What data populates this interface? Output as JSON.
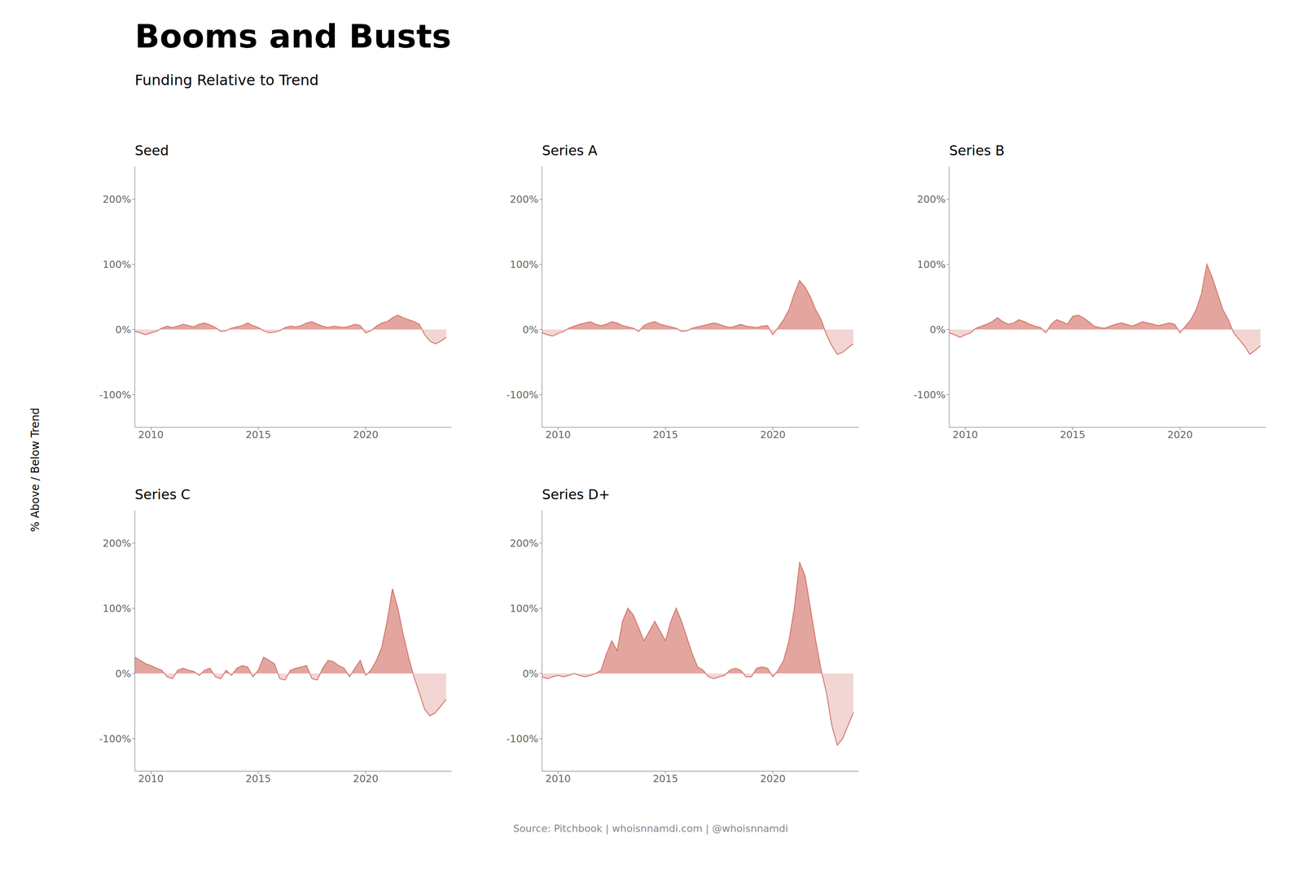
{
  "title": "Booms and Busts",
  "subtitle": "Funding Relative to Trend",
  "ylabel": "% Above / Below Trend",
  "annotations": [
    "Source: Pitchbook | whoisnnamdi.com | @whoisnnamdi"
  ],
  "chart_data": [
    {
      "type": "area",
      "title": "Seed",
      "color": "#d4756b",
      "grid": false,
      "xlim": [
        2009.25,
        2024.0
      ],
      "xticks": [
        2010,
        2015,
        2020
      ],
      "ylim": [
        -150,
        250
      ],
      "yticks": [
        {
          "value": -100,
          "label": "-100%"
        },
        {
          "value": 0,
          "label": "0%"
        },
        {
          "value": 100,
          "label": "100%"
        },
        {
          "value": 200,
          "label": "200%"
        }
      ],
      "x": [
        2009.25,
        2009.5,
        2009.75,
        2010.0,
        2010.25,
        2010.5,
        2010.75,
        2011.0,
        2011.25,
        2011.5,
        2011.75,
        2012.0,
        2012.25,
        2012.5,
        2012.75,
        2013.0,
        2013.25,
        2013.5,
        2013.75,
        2014.0,
        2014.25,
        2014.5,
        2014.75,
        2015.0,
        2015.25,
        2015.5,
        2015.75,
        2016.0,
        2016.25,
        2016.5,
        2016.75,
        2017.0,
        2017.25,
        2017.5,
        2017.75,
        2018.0,
        2018.25,
        2018.5,
        2018.75,
        2019.0,
        2019.25,
        2019.5,
        2019.75,
        2020.0,
        2020.25,
        2020.5,
        2020.75,
        2021.0,
        2021.25,
        2021.5,
        2021.75,
        2022.0,
        2022.25,
        2022.5,
        2022.75,
        2023.0,
        2023.25,
        2023.5,
        2023.75
      ],
      "values": [
        -3,
        -5,
        -8,
        -5,
        -3,
        2,
        5,
        3,
        5,
        8,
        6,
        4,
        8,
        10,
        7,
        3,
        -3,
        -2,
        2,
        4,
        6,
        10,
        6,
        3,
        -2,
        -5,
        -4,
        -2,
        3,
        5,
        4,
        6,
        10,
        12,
        8,
        5,
        3,
        5,
        4,
        3,
        5,
        8,
        6,
        -5,
        -2,
        5,
        10,
        12,
        18,
        22,
        18,
        15,
        12,
        8,
        -8,
        -18,
        -22,
        -18,
        -12
      ]
    },
    {
      "type": "area",
      "title": "Series A",
      "color": "#d4756b",
      "grid": false,
      "xlim": [
        2009.25,
        2024.0
      ],
      "xticks": [
        2010,
        2015,
        2020
      ],
      "ylim": [
        -150,
        250
      ],
      "yticks": [
        {
          "value": -100,
          "label": "-100%"
        },
        {
          "value": 0,
          "label": "0%"
        },
        {
          "value": 100,
          "label": "100%"
        },
        {
          "value": 200,
          "label": "200%"
        }
      ],
      "x": [
        2009.25,
        2009.5,
        2009.75,
        2010.0,
        2010.25,
        2010.5,
        2010.75,
        2011.0,
        2011.25,
        2011.5,
        2011.75,
        2012.0,
        2012.25,
        2012.5,
        2012.75,
        2013.0,
        2013.25,
        2013.5,
        2013.75,
        2014.0,
        2014.25,
        2014.5,
        2014.75,
        2015.0,
        2015.25,
        2015.5,
        2015.75,
        2016.0,
        2016.25,
        2016.5,
        2016.75,
        2017.0,
        2017.25,
        2017.5,
        2017.75,
        2018.0,
        2018.25,
        2018.5,
        2018.75,
        2019.0,
        2019.25,
        2019.5,
        2019.75,
        2020.0,
        2020.25,
        2020.5,
        2020.75,
        2021.0,
        2021.25,
        2021.5,
        2021.75,
        2022.0,
        2022.25,
        2022.5,
        2022.75,
        2023.0,
        2023.25,
        2023.5,
        2023.75
      ],
      "values": [
        -5,
        -8,
        -10,
        -6,
        -3,
        2,
        5,
        8,
        10,
        12,
        8,
        6,
        8,
        12,
        10,
        6,
        4,
        2,
        -3,
        6,
        10,
        12,
        8,
        6,
        4,
        2,
        -3,
        -2,
        2,
        4,
        6,
        8,
        10,
        8,
        5,
        3,
        5,
        8,
        5,
        4,
        3,
        5,
        6,
        -8,
        3,
        15,
        30,
        55,
        75,
        65,
        50,
        30,
        15,
        -8,
        -25,
        -38,
        -35,
        -28,
        -22
      ]
    },
    {
      "type": "area",
      "title": "Series B",
      "color": "#d4756b",
      "grid": false,
      "xlim": [
        2009.25,
        2024.0
      ],
      "xticks": [
        2010,
        2015,
        2020
      ],
      "ylim": [
        -150,
        250
      ],
      "yticks": [
        {
          "value": -100,
          "label": "-100%"
        },
        {
          "value": 0,
          "label": "0%"
        },
        {
          "value": 100,
          "label": "100%"
        },
        {
          "value": 200,
          "label": "200%"
        }
      ],
      "x": [
        2009.25,
        2009.5,
        2009.75,
        2010.0,
        2010.25,
        2010.5,
        2010.75,
        2011.0,
        2011.25,
        2011.5,
        2011.75,
        2012.0,
        2012.25,
        2012.5,
        2012.75,
        2013.0,
        2013.25,
        2013.5,
        2013.75,
        2014.0,
        2014.25,
        2014.5,
        2014.75,
        2015.0,
        2015.25,
        2015.5,
        2015.75,
        2016.0,
        2016.25,
        2016.5,
        2016.75,
        2017.0,
        2017.25,
        2017.5,
        2017.75,
        2018.0,
        2018.25,
        2018.5,
        2018.75,
        2019.0,
        2019.25,
        2019.5,
        2019.75,
        2020.0,
        2020.25,
        2020.5,
        2020.75,
        2021.0,
        2021.25,
        2021.5,
        2021.75,
        2022.0,
        2022.25,
        2022.5,
        2022.75,
        2023.0,
        2023.25,
        2023.5,
        2023.75
      ],
      "values": [
        -5,
        -8,
        -12,
        -8,
        -5,
        2,
        5,
        8,
        12,
        18,
        12,
        8,
        10,
        15,
        12,
        8,
        5,
        3,
        -5,
        8,
        15,
        12,
        8,
        20,
        22,
        18,
        12,
        5,
        3,
        2,
        5,
        8,
        10,
        8,
        5,
        8,
        12,
        10,
        8,
        6,
        8,
        10,
        8,
        -5,
        5,
        15,
        30,
        55,
        100,
        80,
        55,
        30,
        15,
        -5,
        -15,
        -25,
        -38,
        -32,
        -25
      ]
    },
    {
      "type": "area",
      "title": "Series C",
      "color": "#d4756b",
      "grid": false,
      "xlim": [
        2009.25,
        2024.0
      ],
      "xticks": [
        2010,
        2015,
        2020
      ],
      "ylim": [
        -150,
        250
      ],
      "yticks": [
        {
          "value": -100,
          "label": "-100%"
        },
        {
          "value": 0,
          "label": "0%"
        },
        {
          "value": 100,
          "label": "100%"
        },
        {
          "value": 200,
          "label": "200%"
        }
      ],
      "x": [
        2009.25,
        2009.5,
        2009.75,
        2010.0,
        2010.25,
        2010.5,
        2010.75,
        2011.0,
        2011.25,
        2011.5,
        2011.75,
        2012.0,
        2012.25,
        2012.5,
        2012.75,
        2013.0,
        2013.25,
        2013.5,
        2013.75,
        2014.0,
        2014.25,
        2014.5,
        2014.75,
        2015.0,
        2015.25,
        2015.5,
        2015.75,
        2016.0,
        2016.25,
        2016.5,
        2016.75,
        2017.0,
        2017.25,
        2017.5,
        2017.75,
        2018.0,
        2018.25,
        2018.5,
        2018.75,
        2019.0,
        2019.25,
        2019.5,
        2019.75,
        2020.0,
        2020.25,
        2020.5,
        2020.75,
        2021.0,
        2021.25,
        2021.5,
        2021.75,
        2022.0,
        2022.25,
        2022.5,
        2022.75,
        2023.0,
        2023.25,
        2023.5,
        2023.75
      ],
      "values": [
        25,
        20,
        15,
        12,
        8,
        5,
        -5,
        -8,
        5,
        8,
        5,
        3,
        -3,
        5,
        8,
        -5,
        -8,
        5,
        -3,
        8,
        12,
        10,
        -5,
        5,
        25,
        20,
        15,
        -8,
        -10,
        5,
        8,
        10,
        12,
        -8,
        -10,
        8,
        20,
        18,
        12,
        8,
        -5,
        8,
        20,
        -3,
        5,
        20,
        40,
        80,
        130,
        100,
        60,
        25,
        -5,
        -30,
        -55,
        -65,
        -60,
        -50,
        -40
      ]
    },
    {
      "type": "area",
      "title": "Series D+",
      "color": "#d4756b",
      "grid": false,
      "xlim": [
        2009.25,
        2024.0
      ],
      "xticks": [
        2010,
        2015,
        2020
      ],
      "ylim": [
        -150,
        250
      ],
      "yticks": [
        {
          "value": -100,
          "label": "-100%"
        },
        {
          "value": 0,
          "label": "0%"
        },
        {
          "value": 100,
          "label": "100%"
        },
        {
          "value": 200,
          "label": "200%"
        }
      ],
      "x": [
        2009.25,
        2009.5,
        2009.75,
        2010.0,
        2010.25,
        2010.5,
        2010.75,
        2011.0,
        2011.25,
        2011.5,
        2011.75,
        2012.0,
        2012.25,
        2012.5,
        2012.75,
        2013.0,
        2013.25,
        2013.5,
        2013.75,
        2014.0,
        2014.25,
        2014.5,
        2014.75,
        2015.0,
        2015.25,
        2015.5,
        2015.75,
        2016.0,
        2016.25,
        2016.5,
        2016.75,
        2017.0,
        2017.25,
        2017.5,
        2017.75,
        2018.0,
        2018.25,
        2018.5,
        2018.75,
        2019.0,
        2019.25,
        2019.5,
        2019.75,
        2020.0,
        2020.25,
        2020.5,
        2020.75,
        2021.0,
        2021.25,
        2021.5,
        2021.75,
        2022.0,
        2022.25,
        2022.5,
        2022.75,
        2023.0,
        2023.25,
        2023.5,
        2023.75
      ],
      "values": [
        -5,
        -8,
        -5,
        -3,
        -5,
        -3,
        0,
        -3,
        -5,
        -3,
        0,
        5,
        30,
        50,
        35,
        80,
        100,
        90,
        70,
        50,
        65,
        80,
        65,
        50,
        80,
        100,
        80,
        55,
        30,
        10,
        5,
        -5,
        -8,
        -5,
        -3,
        5,
        8,
        5,
        -5,
        -5,
        8,
        10,
        8,
        -5,
        5,
        20,
        50,
        100,
        170,
        150,
        100,
        50,
        5,
        -30,
        -80,
        -110,
        -100,
        -80,
        -60
      ]
    }
  ]
}
